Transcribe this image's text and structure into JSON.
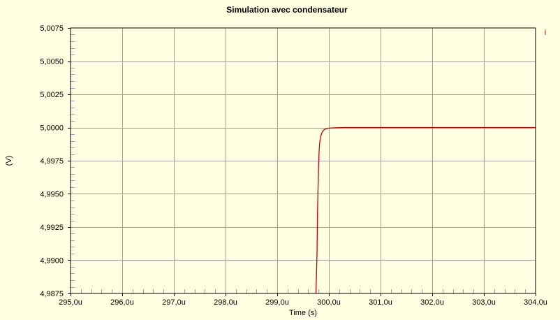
{
  "chart_data": {
    "type": "line",
    "title": "Simulation avec condensateur",
    "xlabel": "Time (s)",
    "ylabel": "(V)",
    "xlim": [
      295.0,
      304.0
    ],
    "ylim": [
      4.9875,
      5.0075
    ],
    "x_ticks": [
      295.0,
      296.0,
      297.0,
      298.0,
      299.0,
      300.0,
      301.0,
      302.0,
      303.0,
      304.0
    ],
    "x_tick_labels": [
      "295,0u",
      "296,0u",
      "297,0u",
      "298,0u",
      "299,0u",
      "300,0u",
      "301,0u",
      "302,0u",
      "303,0u",
      "304,0u"
    ],
    "y_ticks": [
      4.9875,
      4.99,
      4.9925,
      4.995,
      4.9975,
      5.0,
      5.0025,
      5.005,
      5.0075
    ],
    "y_tick_labels": [
      "4,9875",
      "4,9900",
      "4,9925",
      "4,9950",
      "4,9975",
      "5,0000",
      "5,0025",
      "5,0050",
      "5,0075"
    ],
    "grid": true,
    "legend": {
      "placement": "top-right",
      "entries": [
        {
          "text": "i",
          "color": "#cc0000"
        }
      ]
    },
    "series": [
      {
        "color": "#cc0000",
        "x": [
          299.75,
          299.77,
          299.78,
          299.79,
          299.8,
          299.81,
          299.82,
          299.84,
          299.86,
          299.88,
          299.91,
          299.95,
          300.0,
          300.1,
          300.3,
          300.6,
          301.0,
          302.0,
          303.0,
          304.0
        ],
        "y": [
          4.9875,
          4.9905,
          4.9935,
          4.9955,
          4.997,
          4.9981,
          4.9988,
          4.9993,
          4.99955,
          4.99972,
          4.99983,
          4.99991,
          4.99995,
          4.99998,
          5.0,
          5.0,
          5.0,
          5.0,
          5.0,
          5.0
        ]
      }
    ]
  },
  "colors": {
    "background": "#ffffe1",
    "grid": "#a0a0a0",
    "axis": "#000000",
    "series": "#cc0000"
  }
}
